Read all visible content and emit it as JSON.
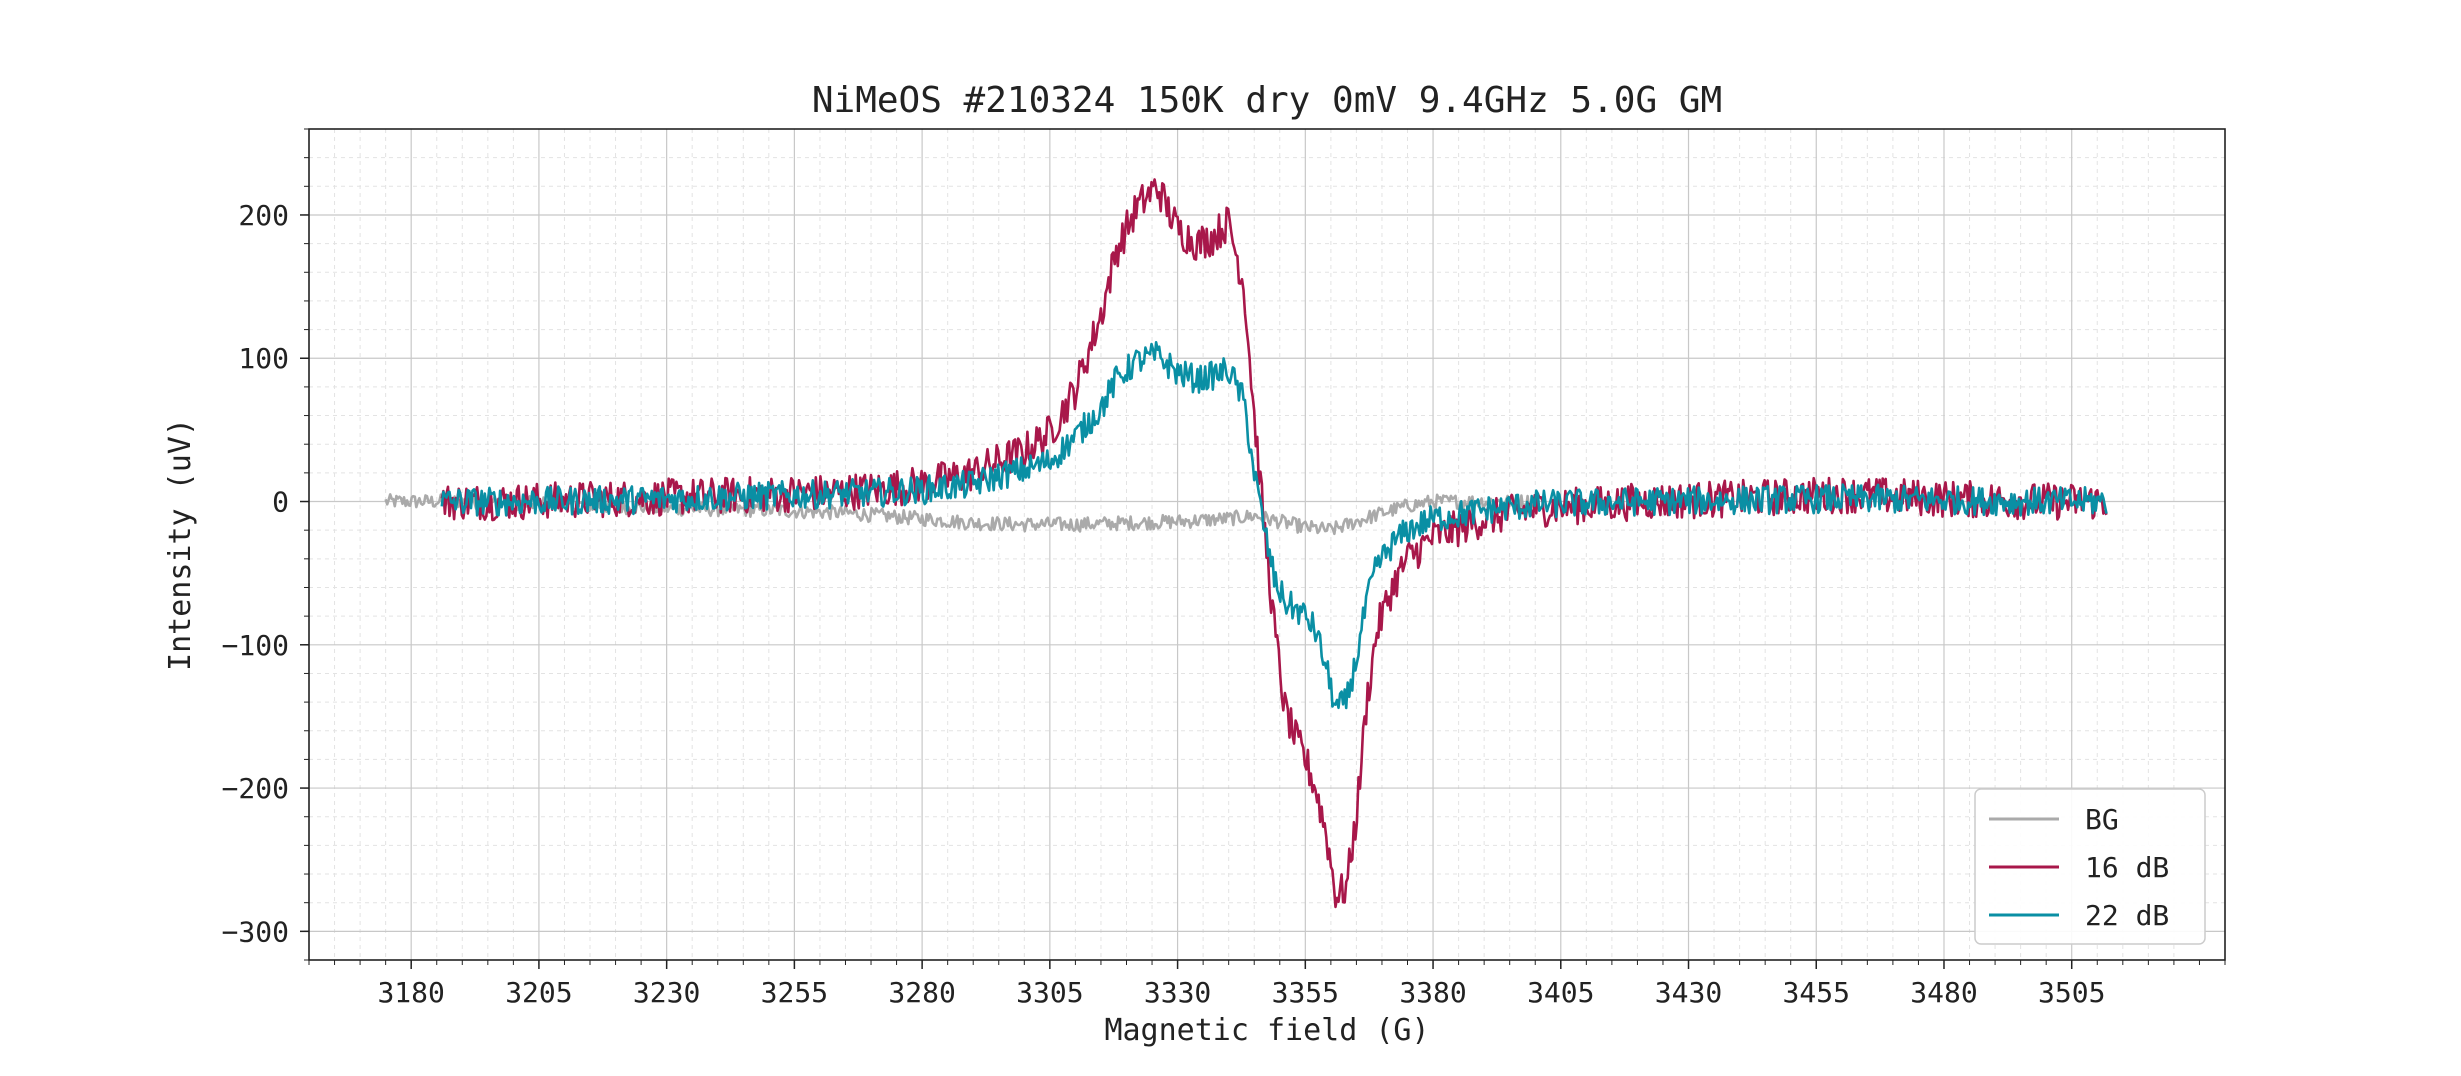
{
  "chart_data": {
    "type": "line",
    "title": "NiMeOS #210324 150K dry 0mV 9.4GHz 5.0G GM",
    "xlabel": "Magnetic field (G)",
    "ylabel": "Intensity (uV)",
    "xlim": [
      3160,
      3535
    ],
    "ylim": [
      -320,
      260
    ],
    "xticks": [
      3180,
      3205,
      3230,
      3255,
      3280,
      3305,
      3330,
      3355,
      3380,
      3405,
      3430,
      3455,
      3480,
      3505
    ],
    "yticks": [
      -300,
      -200,
      -100,
      0,
      100,
      200
    ],
    "grid": true,
    "minor_grid": true,
    "legend_position": "lower-right",
    "series": [
      {
        "name": "BG",
        "color": "#aaaaaa",
        "x": [
          3175,
          3190,
          3210,
          3230,
          3250,
          3265,
          3280,
          3290,
          3300,
          3310,
          3320,
          3330,
          3340,
          3345,
          3350,
          3355,
          3360,
          3365,
          3370,
          3375,
          3380,
          3390,
          3400
        ],
        "y": [
          0,
          0,
          -2,
          -5,
          -6,
          -8,
          -12,
          -15,
          -16,
          -16,
          -15,
          -14,
          -12,
          -10,
          -14,
          -18,
          -20,
          -14,
          -8,
          -3,
          0,
          0,
          0
        ]
      },
      {
        "name": "16 dB",
        "color": "#a8174a",
        "x": [
          3186,
          3200,
          3220,
          3240,
          3260,
          3270,
          3280,
          3290,
          3295,
          3300,
          3305,
          3310,
          3315,
          3318,
          3322,
          3326,
          3330,
          3334,
          3337,
          3340,
          3343,
          3345,
          3347,
          3349,
          3351,
          3353,
          3355,
          3357,
          3359,
          3361,
          3363,
          3365,
          3367,
          3369,
          3372,
          3375,
          3380,
          3390,
          3400,
          3420,
          3440,
          3460,
          3480,
          3500,
          3512
        ],
        "y": [
          0,
          0,
          2,
          4,
          6,
          8,
          12,
          20,
          28,
          35,
          48,
          78,
          130,
          175,
          205,
          220,
          190,
          180,
          185,
          195,
          150,
          60,
          -20,
          -90,
          -145,
          -165,
          -180,
          -200,
          -230,
          -275,
          -270,
          -220,
          -140,
          -90,
          -60,
          -40,
          -25,
          -12,
          -5,
          0,
          2,
          5,
          2,
          0,
          0
        ]
      },
      {
        "name": "22 dB",
        "color": "#0a8fa4",
        "x": [
          3186,
          3200,
          3220,
          3240,
          3260,
          3270,
          3280,
          3290,
          3295,
          3300,
          3305,
          3310,
          3315,
          3318,
          3322,
          3326,
          3330,
          3334,
          3337,
          3340,
          3343,
          3345,
          3347,
          3349,
          3351,
          3353,
          3355,
          3357,
          3359,
          3361,
          3363,
          3365,
          3367,
          3369,
          3372,
          3375,
          3380,
          3390,
          3400,
          3420,
          3440,
          3460,
          3480,
          3500,
          3512
        ],
        "y": [
          0,
          0,
          1,
          3,
          5,
          6,
          8,
          12,
          18,
          22,
          28,
          45,
          65,
          85,
          98,
          102,
          90,
          85,
          88,
          92,
          70,
          20,
          -20,
          -55,
          -70,
          -75,
          -80,
          -90,
          -115,
          -145,
          -140,
          -110,
          -70,
          -45,
          -30,
          -20,
          -12,
          -6,
          -2,
          0,
          1,
          2,
          1,
          0,
          0
        ]
      }
    ]
  }
}
